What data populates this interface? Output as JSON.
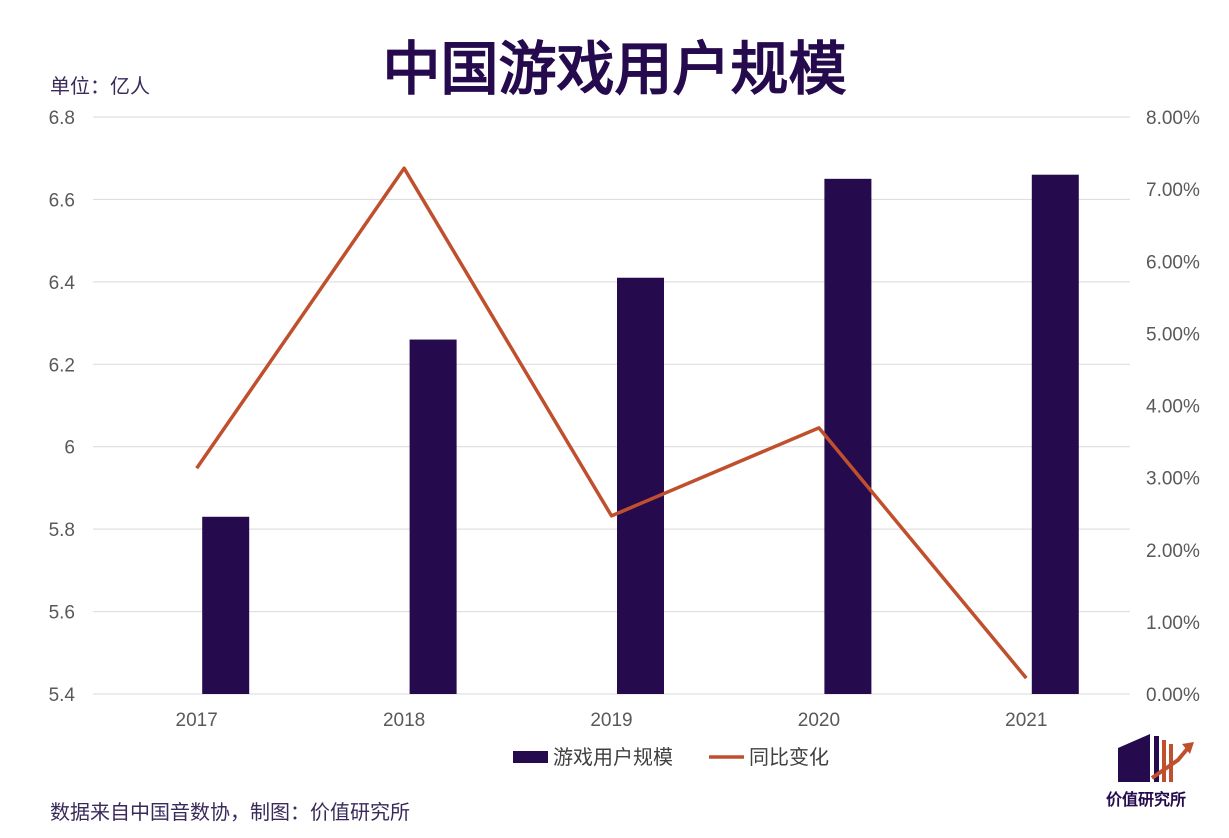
{
  "chart_data": {
    "type": "bar+line",
    "title": "中国游戏用户规模",
    "unit_label": "单位：亿人",
    "source": "数据来自中国音数协，制图：价值研究所",
    "categories": [
      "2017",
      "2018",
      "2019",
      "2020",
      "2021"
    ],
    "series": [
      {
        "name": "游戏用户规模",
        "type": "bar",
        "axis": "left",
        "color": "#250a4d",
        "values": [
          5.83,
          6.26,
          6.41,
          6.65,
          6.66
        ]
      },
      {
        "name": "同比变化",
        "type": "line",
        "axis": "right",
        "color": "#c0502d",
        "values": [
          3.13,
          7.29,
          2.47,
          3.69,
          0.22
        ]
      }
    ],
    "left_axis": {
      "ylim": [
        5.4,
        6.8
      ],
      "ticks": [
        "5.4",
        "5.6",
        "5.8",
        "6",
        "6.2",
        "6.4",
        "6.6",
        "6.8"
      ]
    },
    "right_axis": {
      "ylim": [
        0,
        8
      ],
      "ticks": [
        "0.00%",
        "1.00%",
        "2.00%",
        "3.00%",
        "4.00%",
        "5.00%",
        "6.00%",
        "7.00%",
        "8.00%"
      ]
    },
    "grid": true,
    "legend_position": "bottom"
  },
  "logo": {
    "text": "价值研究所"
  }
}
